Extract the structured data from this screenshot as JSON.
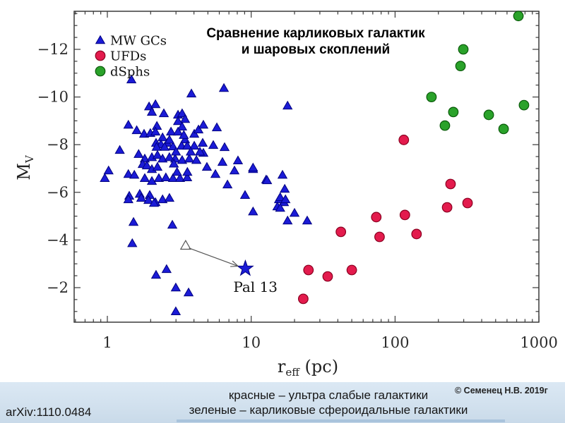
{
  "slide": {
    "title": {
      "line1": "Сравнение карликовых галактик",
      "line2": "и шаровых скоплений"
    },
    "footer": {
      "arxiv_ref": "arXiv:1110.0484",
      "caption_line1": "красные – ультра слабые галактики",
      "caption_line2": "зеленые – карликовые сфероидальные галактики",
      "copyright": "© Семенец Н.В. 2019г"
    }
  },
  "colors": {
    "mw_gcs": "#1b1bd6",
    "ufds": "#e31b4d",
    "dsphs": "#2aa22a",
    "footer_band": "#d2e1ee",
    "axis": "#3a3a3a",
    "title_text": "#000000"
  },
  "chart_data": {
    "type": "scatter",
    "title": "Сравнение карликовых галактик и шаровых скоплений",
    "xlabel": "r_eff (pc)",
    "ylabel": "M_V",
    "xlabel_parts": {
      "main": "r",
      "sub": "eff",
      "rest": " (pc)"
    },
    "ylabel_parts": {
      "main": "M",
      "sub": "V"
    },
    "x_scale": "log",
    "xlim": [
      0.59,
      1000
    ],
    "ylim": [
      -0.55,
      -13.6
    ],
    "x_ticks": [
      1,
      10,
      100,
      1000
    ],
    "y_ticks": [
      -12,
      -10,
      -8,
      -6,
      -4,
      -2
    ],
    "grid": false,
    "legend_position": "top-left",
    "annotation": {
      "text": "Pal 13",
      "label_at": [
        10.7,
        -2.03
      ],
      "arrow_from": [
        3.7,
        -3.66
      ],
      "arrow_to": [
        8.1,
        -2.9
      ]
    },
    "series": [
      {
        "name": "MW GCs",
        "slug": "mw-gcs",
        "marker": "triangle",
        "color": "#1b1bd6",
        "edge": "#000080",
        "in_legend": true,
        "points": [
          [
            1.47,
            -10.73
          ],
          [
            3.84,
            -10.14
          ],
          [
            1.95,
            -9.6
          ],
          [
            2.16,
            -9.69
          ],
          [
            2.04,
            -9.37
          ],
          [
            2.47,
            -9.31
          ],
          [
            3.1,
            -9.25
          ],
          [
            3.31,
            -9.31
          ],
          [
            3.47,
            -9.07
          ],
          [
            1.4,
            -8.83
          ],
          [
            2.21,
            -8.78
          ],
          [
            3.1,
            -8.98
          ],
          [
            3.31,
            -8.75
          ],
          [
            1.8,
            -8.45
          ],
          [
            1.99,
            -8.48
          ],
          [
            2.16,
            -8.54
          ],
          [
            2.42,
            -8.3
          ],
          [
            2.77,
            -8.54
          ],
          [
            3.1,
            -8.54
          ],
          [
            3.47,
            -8.21
          ],
          [
            4.02,
            -8.45
          ],
          [
            4.3,
            -8.63
          ],
          [
            2.18,
            -8.07
          ],
          [
            2.36,
            -8.01
          ],
          [
            2.61,
            -8.07
          ],
          [
            2.86,
            -7.92
          ],
          [
            3.28,
            -7.95
          ],
          [
            3.59,
            -7.95
          ],
          [
            4.02,
            -7.95
          ],
          [
            1.22,
            -7.77
          ],
          [
            1.82,
            -7.41
          ],
          [
            2.04,
            -7.47
          ],
          [
            2.23,
            -7.56
          ],
          [
            2.42,
            -7.41
          ],
          [
            2.7,
            -7.47
          ],
          [
            2.96,
            -7.41
          ],
          [
            3.31,
            -7.35
          ],
          [
            3.71,
            -7.41
          ],
          [
            4.16,
            -7.35
          ],
          [
            1.02,
            -6.91
          ],
          [
            0.96,
            -6.59
          ],
          [
            1.4,
            -6.76
          ],
          [
            1.54,
            -6.73
          ],
          [
            1.76,
            -7.18
          ],
          [
            1.88,
            -7.12
          ],
          [
            2.04,
            -6.97
          ],
          [
            2.23,
            -7.06
          ],
          [
            1.82,
            -6.59
          ],
          [
            2.04,
            -6.47
          ],
          [
            2.28,
            -6.59
          ],
          [
            2.55,
            -6.62
          ],
          [
            2.86,
            -6.59
          ],
          [
            3.2,
            -6.59
          ],
          [
            3.59,
            -6.62
          ],
          [
            1.42,
            -5.85
          ],
          [
            1.68,
            -5.93
          ],
          [
            1.97,
            -5.88
          ],
          [
            2.16,
            -5.58
          ],
          [
            2.42,
            -5.7
          ],
          [
            6.46,
            -10.37
          ],
          [
            17.9,
            -9.63
          ],
          [
            4.65,
            -8.83
          ],
          [
            5.77,
            -8.72
          ],
          [
            4.6,
            -8.07
          ],
          [
            5.45,
            -7.98
          ],
          [
            6.53,
            -7.89
          ],
          [
            4.65,
            -7.65
          ],
          [
            6.31,
            -7.27
          ],
          [
            8.09,
            -7.33
          ],
          [
            4.92,
            -7.06
          ],
          [
            7.65,
            -6.91
          ],
          [
            5.64,
            -6.76
          ],
          [
            10.3,
            -6.97
          ],
          [
            12.7,
            -6.53
          ],
          [
            16.5,
            -6.73
          ],
          [
            6.84,
            -6.32
          ],
          [
            9.06,
            -5.88
          ],
          [
            15.6,
            -5.7
          ],
          [
            17.1,
            -6.14
          ],
          [
            16.9,
            -5.58
          ],
          [
            10.3,
            -7.03
          ],
          [
            12.9,
            -6.5
          ],
          [
            15.9,
            -5.79
          ],
          [
            17.3,
            -5.7
          ],
          [
            15.2,
            -5.4
          ],
          [
            15.9,
            -5.34
          ],
          [
            10.3,
            -5.19
          ],
          [
            20,
            -5.13
          ],
          [
            17.9,
            -4.81
          ],
          [
            24.5,
            -4.81
          ],
          [
            1.4,
            -5.7
          ],
          [
            1.72,
            -5.76
          ],
          [
            1.93,
            -5.67
          ],
          [
            2.11,
            -5.55
          ],
          [
            2.7,
            -5.76
          ],
          [
            1.52,
            -4.75
          ],
          [
            2.83,
            -4.63
          ],
          [
            1.49,
            -3.86
          ],
          [
            2.18,
            -2.53
          ],
          [
            2.58,
            -2.77
          ],
          [
            2.99,
            -2.0
          ],
          [
            3.67,
            -1.79
          ],
          [
            2.99,
            -1.0
          ],
          [
            2.5,
            -7.9
          ],
          [
            3.0,
            -7.7
          ],
          [
            2.7,
            -8.2
          ],
          [
            3.4,
            -8.4
          ],
          [
            2.9,
            -7.2
          ],
          [
            3.8,
            -7.7
          ],
          [
            2.2,
            -7.9
          ],
          [
            4.4,
            -7.7
          ],
          [
            3.05,
            -6.85
          ],
          [
            3.6,
            -6.85
          ],
          [
            1.6,
            -8.6
          ],
          [
            1.65,
            -7.6
          ]
        ]
      },
      {
        "name": "UFDs",
        "slug": "ufds",
        "marker": "circle",
        "color": "#e31b4d",
        "edge": "#8b0020",
        "in_legend": true,
        "points": [
          [
            115,
            -8.2
          ],
          [
            243,
            -6.35
          ],
          [
            230,
            -5.37
          ],
          [
            319,
            -5.55
          ],
          [
            74,
            -4.96
          ],
          [
            117,
            -5.05
          ],
          [
            78,
            -4.13
          ],
          [
            141,
            -4.25
          ],
          [
            42,
            -4.34
          ],
          [
            25,
            -2.74
          ],
          [
            34,
            -2.47
          ],
          [
            50,
            -2.74
          ],
          [
            23,
            -1.53
          ]
        ]
      },
      {
        "name": "dSphs",
        "slug": "dsphs",
        "marker": "circle",
        "color": "#2aa22a",
        "edge": "#0a5a0a",
        "in_legend": true,
        "points": [
          [
            720,
            -13.4
          ],
          [
            298,
            -12.0
          ],
          [
            285,
            -11.3
          ],
          [
            179,
            -10.0
          ],
          [
            787,
            -9.66
          ],
          [
            254,
            -9.37
          ],
          [
            448,
            -9.25
          ],
          [
            222,
            -8.8
          ],
          [
            568,
            -8.66
          ]
        ]
      },
      {
        "name": "Pal 13",
        "slug": "pal13",
        "marker": "star",
        "color": "#1b1bd6",
        "edge": "#000080",
        "in_legend": false,
        "points": [
          [
            9.1,
            -2.8
          ]
        ]
      },
      {
        "name": "unlabeled cluster",
        "slug": "open-triangle",
        "marker": "open-triangle",
        "color": "#ffffff",
        "edge": "#555555",
        "in_legend": false,
        "points": [
          [
            3.5,
            -3.77
          ]
        ]
      }
    ]
  }
}
